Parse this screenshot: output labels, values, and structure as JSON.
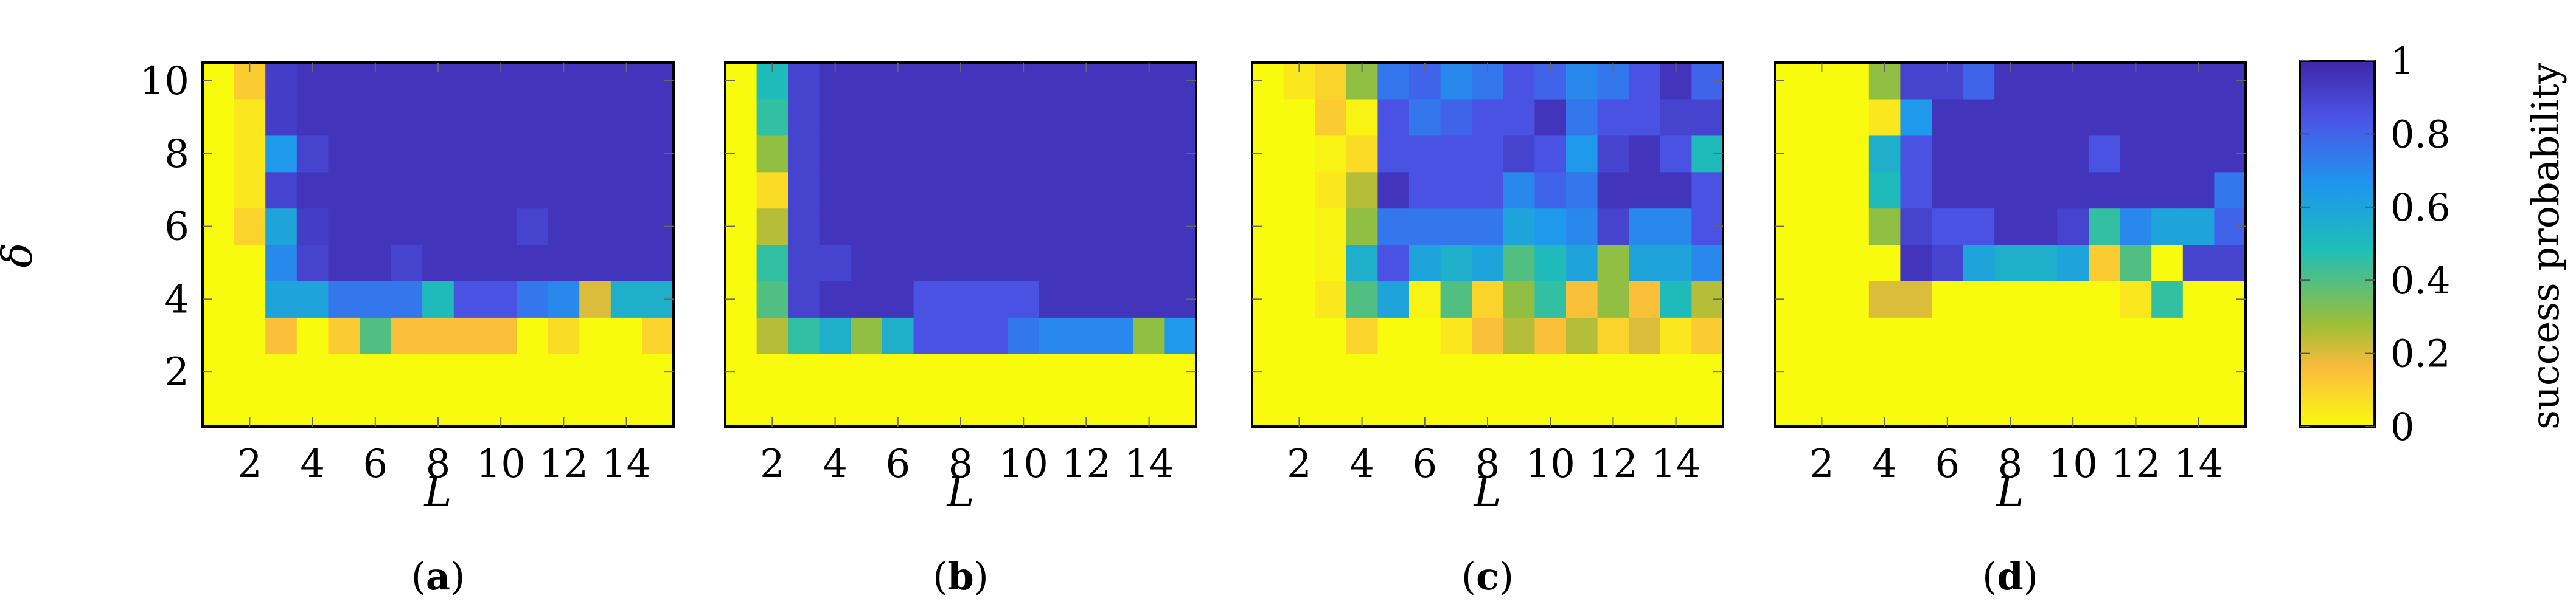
{
  "figure": {
    "y_axis_label": "δ",
    "colorbar": {
      "label": "success probability",
      "ticks": [
        "0",
        "0.2",
        "0.4",
        "0.6",
        "0.8",
        "1"
      ],
      "colors": [
        "#f9fb0e",
        "#fbbc3d",
        "#9cbf36",
        "#1fbfb5",
        "#1e97ee",
        "#4a55e7",
        "#3e26a8"
      ]
    }
  },
  "chart_data": [
    {
      "type": "heatmap",
      "panel_label": "(a)",
      "xlabel": "L",
      "ylabel": "δ",
      "x": [
        1,
        2,
        3,
        4,
        5,
        6,
        7,
        8,
        9,
        10,
        11,
        12,
        13,
        14,
        15
      ],
      "y": [
        1,
        2,
        3,
        4,
        5,
        6,
        7,
        8,
        9,
        10
      ],
      "x_ticks": [
        "2",
        "4",
        "6",
        "8",
        "10",
        "12",
        "14"
      ],
      "y_ticks": [
        "2",
        "4",
        "6",
        "8",
        "10"
      ],
      "zlim": [
        0,
        1
      ],
      "grid": false,
      "z": [
        [
          0,
          0,
          0,
          0,
          0,
          0,
          0,
          0,
          0,
          0,
          0,
          0,
          0,
          0,
          0
        ],
        [
          0,
          0,
          0,
          0,
          0,
          0,
          0,
          0,
          0,
          0,
          0,
          0,
          0,
          0,
          0
        ],
        [
          0,
          0,
          0.15,
          0,
          0.12,
          0.4,
          0.15,
          0.15,
          0.15,
          0.15,
          0,
          0.08,
          0,
          0,
          0.1
        ],
        [
          0,
          0,
          0.6,
          0.6,
          0.75,
          0.75,
          0.75,
          0.5,
          0.85,
          0.85,
          0.75,
          0.7,
          0.2,
          0.55,
          0.55
        ],
        [
          0,
          0,
          0.7,
          0.9,
          0.95,
          0.95,
          0.9,
          0.95,
          0.95,
          0.95,
          0.95,
          0.95,
          0.95,
          0.95,
          0.95
        ],
        [
          0,
          0.1,
          0.6,
          0.92,
          0.95,
          0.95,
          0.95,
          0.95,
          0.95,
          0.95,
          0.9,
          0.95,
          0.95,
          0.95,
          0.95
        ],
        [
          0,
          0.05,
          0.9,
          0.95,
          0.95,
          0.95,
          0.95,
          0.95,
          0.95,
          0.95,
          0.95,
          0.95,
          0.95,
          0.95,
          0.95
        ],
        [
          0,
          0.05,
          0.65,
          0.9,
          0.95,
          0.95,
          0.95,
          0.95,
          0.95,
          0.95,
          0.95,
          0.95,
          0.95,
          0.95,
          0.95
        ],
        [
          0,
          0.05,
          0.92,
          0.95,
          0.95,
          0.95,
          0.95,
          0.95,
          0.95,
          0.95,
          0.95,
          0.95,
          0.95,
          0.95,
          0.95
        ],
        [
          0,
          0.12,
          0.92,
          0.95,
          0.95,
          0.95,
          0.95,
          0.95,
          0.95,
          0.95,
          0.95,
          0.95,
          0.95,
          0.95,
          0.95
        ]
      ]
    },
    {
      "type": "heatmap",
      "panel_label": "(b)",
      "xlabel": "L",
      "ylabel": "δ",
      "x": [
        1,
        2,
        3,
        4,
        5,
        6,
        7,
        8,
        9,
        10,
        11,
        12,
        13,
        14,
        15
      ],
      "y": [
        1,
        2,
        3,
        4,
        5,
        6,
        7,
        8,
        9,
        10
      ],
      "x_ticks": [
        "2",
        "4",
        "6",
        "8",
        "10",
        "12",
        "14"
      ],
      "y_ticks": [
        "2",
        "4",
        "6",
        "8",
        "10"
      ],
      "zlim": [
        0,
        1
      ],
      "grid": false,
      "z": [
        [
          0,
          0,
          0,
          0,
          0,
          0,
          0,
          0,
          0,
          0,
          0,
          0,
          0,
          0,
          0
        ],
        [
          0,
          0,
          0,
          0,
          0,
          0,
          0,
          0,
          0,
          0,
          0,
          0,
          0,
          0,
          0
        ],
        [
          0,
          0.25,
          0.45,
          0.55,
          0.3,
          0.55,
          0.85,
          0.85,
          0.85,
          0.75,
          0.7,
          0.7,
          0.7,
          0.3,
          0.65
        ],
        [
          0,
          0.4,
          0.9,
          0.95,
          0.95,
          0.95,
          0.85,
          0.85,
          0.85,
          0.85,
          0.95,
          0.95,
          0.95,
          0.95,
          0.95
        ],
        [
          0,
          0.45,
          0.9,
          0.9,
          0.95,
          0.95,
          0.95,
          0.95,
          0.95,
          0.95,
          0.95,
          0.95,
          0.95,
          0.95,
          0.95
        ],
        [
          0,
          0.25,
          0.9,
          0.95,
          0.95,
          0.95,
          0.95,
          0.95,
          0.95,
          0.95,
          0.95,
          0.95,
          0.95,
          0.95,
          0.95
        ],
        [
          0,
          0.08,
          0.9,
          0.95,
          0.95,
          0.95,
          0.95,
          0.95,
          0.95,
          0.95,
          0.95,
          0.95,
          0.95,
          0.95,
          0.95
        ],
        [
          0,
          0.3,
          0.9,
          0.95,
          0.95,
          0.95,
          0.95,
          0.95,
          0.95,
          0.95,
          0.95,
          0.95,
          0.95,
          0.95,
          0.95
        ],
        [
          0,
          0.45,
          0.9,
          0.95,
          0.95,
          0.95,
          0.95,
          0.95,
          0.95,
          0.95,
          0.95,
          0.95,
          0.95,
          0.95,
          0.95
        ],
        [
          0,
          0.5,
          0.9,
          0.95,
          0.95,
          0.95,
          0.95,
          0.95,
          0.95,
          0.95,
          0.95,
          0.95,
          0.95,
          0.95,
          0.95
        ]
      ]
    },
    {
      "type": "heatmap",
      "panel_label": "(c)",
      "xlabel": "L",
      "ylabel": "δ",
      "x": [
        1,
        2,
        3,
        4,
        5,
        6,
        7,
        8,
        9,
        10,
        11,
        12,
        13,
        14,
        15
      ],
      "y": [
        1,
        2,
        3,
        4,
        5,
        6,
        7,
        8,
        9,
        10
      ],
      "x_ticks": [
        "2",
        "4",
        "6",
        "8",
        "10",
        "12",
        "14"
      ],
      "y_ticks": [
        "2",
        "4",
        "6",
        "8",
        "10"
      ],
      "zlim": [
        0,
        1
      ],
      "grid": false,
      "z": [
        [
          0,
          0,
          0,
          0,
          0,
          0,
          0,
          0,
          0,
          0,
          0,
          0,
          0,
          0,
          0
        ],
        [
          0,
          0,
          0,
          0,
          0,
          0,
          0,
          0,
          0,
          0,
          0,
          0,
          0,
          0,
          0
        ],
        [
          0,
          0,
          0,
          0.1,
          0,
          0,
          0.05,
          0.15,
          0.25,
          0.15,
          0.25,
          0.1,
          0.2,
          0.05,
          0.12
        ],
        [
          0,
          0,
          0.05,
          0.4,
          0.6,
          0.02,
          0.4,
          0.1,
          0.3,
          0.45,
          0.15,
          0.3,
          0.15,
          0.5,
          0.25
        ],
        [
          0,
          0,
          0.02,
          0.55,
          0.85,
          0.6,
          0.55,
          0.6,
          0.4,
          0.5,
          0.6,
          0.3,
          0.6,
          0.6,
          0.7
        ],
        [
          0,
          0,
          0.02,
          0.3,
          0.75,
          0.75,
          0.75,
          0.75,
          0.6,
          0.65,
          0.7,
          0.9,
          0.7,
          0.7,
          0.85
        ],
        [
          0,
          0,
          0.05,
          0.25,
          0.95,
          0.85,
          0.85,
          0.85,
          0.7,
          0.8,
          0.75,
          0.95,
          0.95,
          0.95,
          0.85
        ],
        [
          0,
          0,
          0.02,
          0.08,
          0.85,
          0.85,
          0.85,
          0.85,
          0.9,
          0.85,
          0.65,
          0.9,
          0.95,
          0.85,
          0.5
        ],
        [
          0,
          0,
          0.12,
          0.02,
          0.85,
          0.75,
          0.8,
          0.85,
          0.85,
          0.95,
          0.75,
          0.85,
          0.85,
          0.9,
          0.9
        ],
        [
          0,
          0.05,
          0.1,
          0.3,
          0.75,
          0.8,
          0.7,
          0.75,
          0.85,
          0.8,
          0.7,
          0.75,
          0.85,
          0.95,
          0.8
        ]
      ]
    },
    {
      "type": "heatmap",
      "panel_label": "(d)",
      "xlabel": "L",
      "ylabel": "δ",
      "x": [
        1,
        2,
        3,
        4,
        5,
        6,
        7,
        8,
        9,
        10,
        11,
        12,
        13,
        14,
        15
      ],
      "y": [
        1,
        2,
        3,
        4,
        5,
        6,
        7,
        8,
        9,
        10
      ],
      "x_ticks": [
        "2",
        "4",
        "6",
        "8",
        "10",
        "12",
        "14"
      ],
      "y_ticks": [
        "2",
        "4",
        "6",
        "8",
        "10"
      ],
      "zlim": [
        0,
        1
      ],
      "grid": false,
      "z": [
        [
          0,
          0,
          0,
          0,
          0,
          0,
          0,
          0,
          0,
          0,
          0,
          0,
          0,
          0,
          0
        ],
        [
          0,
          0,
          0,
          0,
          0,
          0,
          0,
          0,
          0,
          0,
          0,
          0,
          0,
          0,
          0
        ],
        [
          0,
          0,
          0,
          0,
          0,
          0,
          0,
          0,
          0,
          0,
          0,
          0,
          0,
          0,
          0
        ],
        [
          0,
          0,
          0,
          0.2,
          0.2,
          0,
          0,
          0,
          0,
          0,
          0,
          0.05,
          0.45,
          0,
          0
        ],
        [
          0,
          0,
          0,
          0,
          0.95,
          0.9,
          0.6,
          0.55,
          0.55,
          0.6,
          0.12,
          0.4,
          0,
          0.9,
          0.9
        ],
        [
          0,
          0,
          0,
          0.3,
          0.9,
          0.85,
          0.85,
          0.95,
          0.95,
          0.9,
          0.45,
          0.7,
          0.6,
          0.6,
          0.8
        ],
        [
          0,
          0,
          0,
          0.5,
          0.85,
          0.95,
          0.95,
          0.95,
          0.95,
          0.95,
          0.95,
          0.95,
          0.95,
          0.95,
          0.75
        ],
        [
          0,
          0,
          0,
          0.55,
          0.85,
          0.95,
          0.95,
          0.95,
          0.95,
          0.95,
          0.85,
          0.95,
          0.95,
          0.95,
          0.95
        ],
        [
          0,
          0,
          0,
          0.05,
          0.65,
          0.95,
          0.95,
          0.95,
          0.95,
          0.95,
          0.95,
          0.95,
          0.95,
          0.95,
          0.95
        ],
        [
          0,
          0,
          0,
          0.3,
          0.9,
          0.9,
          0.8,
          0.95,
          0.95,
          0.95,
          0.95,
          0.95,
          0.95,
          0.95,
          0.95
        ]
      ]
    }
  ]
}
